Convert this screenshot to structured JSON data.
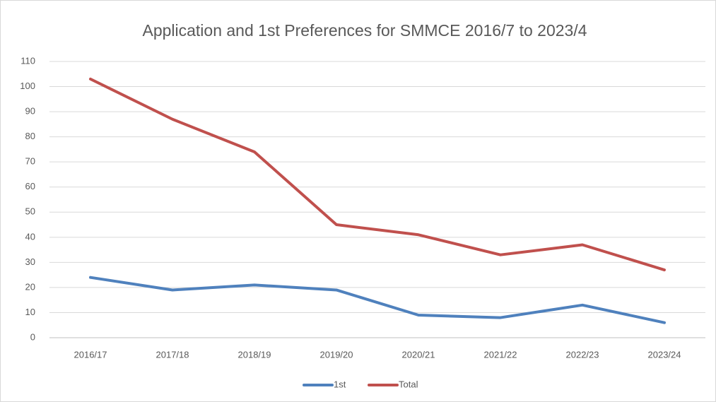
{
  "chart_data": {
    "type": "line",
    "title": "Application and 1st Preferences for SMMCE 2016/7 to 2023/4",
    "categories": [
      "2016/17",
      "2017/18",
      "2018/19",
      "2019/20",
      "2020/21",
      "2021/22",
      "2022/23",
      "2023/24"
    ],
    "series": [
      {
        "name": "1st",
        "color": "#4f81bd",
        "values": [
          24,
          19,
          21,
          19,
          9,
          8,
          13,
          6
        ]
      },
      {
        "name": "Total",
        "color": "#c0504d",
        "values": [
          103,
          87,
          74,
          45,
          41,
          33,
          37,
          27
        ]
      }
    ],
    "ylim": [
      0,
      110
    ],
    "yticks": [
      0,
      10,
      20,
      30,
      40,
      50,
      60,
      70,
      80,
      90,
      100,
      110
    ],
    "grid": true,
    "legend": "bottom"
  }
}
